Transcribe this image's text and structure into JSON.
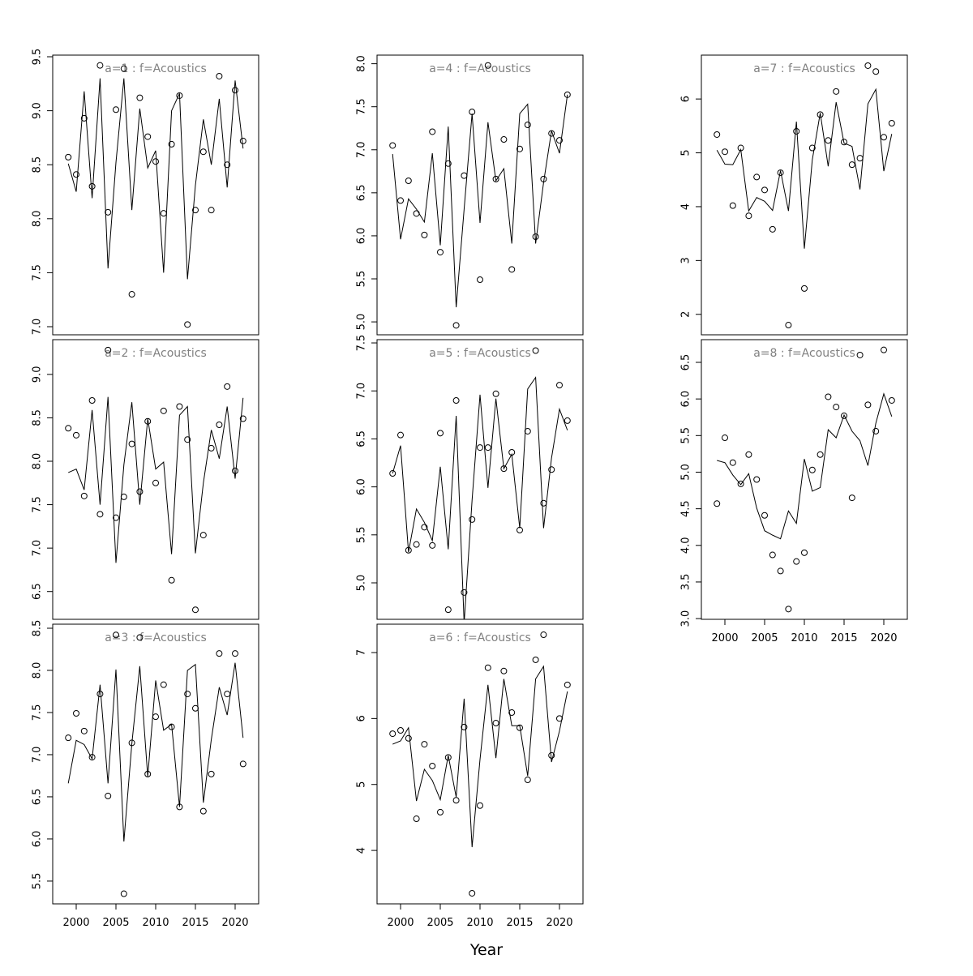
{
  "x_label": "Year",
  "chart_data": [
    {
      "type": "scatter",
      "title": "a=1  :  f=Acoustics",
      "x": [
        1999,
        2000,
        2001,
        2002,
        2003,
        2004,
        2005,
        2006,
        2007,
        2008,
        2009,
        2010,
        2011,
        2012,
        2013,
        2014,
        2015,
        2016,
        2017,
        2018,
        2019,
        2020,
        2021
      ],
      "values": [
        8.57,
        8.41,
        8.93,
        8.3,
        9.42,
        8.06,
        9.01,
        9.39,
        7.3,
        9.12,
        8.76,
        8.53,
        8.05,
        8.69,
        9.14,
        7.02,
        8.08,
        8.62,
        8.08,
        9.32,
        8.5,
        9.19,
        8.72
      ],
      "fitted": [
        8.51,
        8.25,
        9.18,
        8.19,
        9.3,
        7.54,
        8.52,
        9.3,
        8.08,
        9.02,
        8.47,
        8.63,
        7.5,
        9.0,
        9.16,
        7.44,
        8.31,
        8.92,
        8.5,
        9.11,
        8.29,
        9.28,
        8.65
      ],
      "xlim": [
        1997.04,
        2022.96
      ],
      "ylim": [
        6.925,
        9.515
      ],
      "yticks": [
        {
          "value": 7,
          "label": "7.0"
        },
        7.5,
        {
          "value": 8,
          "label": "8.0"
        },
        8.5,
        {
          "value": 9,
          "label": "9.0"
        },
        9.5
      ]
    },
    {
      "type": "scatter",
      "title": "a=2  :  f=Acoustics",
      "x": [
        1999,
        2000,
        2001,
        2002,
        2003,
        2004,
        2005,
        2006,
        2007,
        2008,
        2009,
        2010,
        2011,
        2012,
        2013,
        2014,
        2015,
        2016,
        2017,
        2018,
        2019,
        2020,
        2021
      ],
      "values": [
        8.38,
        8.3,
        7.6,
        8.7,
        7.39,
        9.28,
        7.35,
        7.59,
        8.2,
        7.65,
        8.46,
        7.75,
        8.58,
        6.63,
        8.63,
        8.25,
        6.29,
        7.15,
        8.15,
        8.42,
        8.86,
        7.89,
        8.49
      ],
      "fitted": [
        7.87,
        7.91,
        7.67,
        8.59,
        7.5,
        8.74,
        6.83,
        7.96,
        8.68,
        7.5,
        8.49,
        7.91,
        7.99,
        6.93,
        8.53,
        8.63,
        6.94,
        7.75,
        8.36,
        8.03,
        8.63,
        7.8,
        8.73
      ],
      "xlim": [
        1997.04,
        2022.96
      ],
      "ylim": [
        6.18,
        9.4
      ],
      "yticks": [
        6.5,
        {
          "value": 7,
          "label": "7.0"
        },
        7.5,
        {
          "value": 8,
          "label": "8.0"
        },
        8.5,
        {
          "value": 9,
          "label": "9.0"
        }
      ]
    },
    {
      "type": "scatter",
      "title": "a=3  :  f=Acoustics",
      "x": [
        1999,
        2000,
        2001,
        2002,
        2003,
        2004,
        2005,
        2006,
        2007,
        2008,
        2009,
        2010,
        2011,
        2012,
        2013,
        2014,
        2015,
        2016,
        2017,
        2018,
        2019,
        2020,
        2021
      ],
      "values": [
        7.2,
        7.49,
        7.28,
        6.97,
        7.72,
        6.51,
        8.42,
        5.35,
        7.14,
        8.39,
        6.77,
        7.45,
        7.83,
        7.33,
        6.38,
        7.72,
        7.55,
        6.33,
        6.77,
        8.2,
        7.72,
        8.2,
        6.89
      ],
      "fitted": [
        6.66,
        7.17,
        7.12,
        6.95,
        7.83,
        6.66,
        8.01,
        5.97,
        7.13,
        8.05,
        6.74,
        7.88,
        7.29,
        7.36,
        6.38,
        8.0,
        8.07,
        6.43,
        7.18,
        7.8,
        7.47,
        8.09,
        7.2
      ],
      "xlim": [
        1997.04,
        2022.96
      ],
      "ylim": [
        5.23,
        8.548
      ],
      "xticks": [
        2000,
        2005,
        2010,
        2015,
        2020
      ],
      "yticks": [
        5.5,
        {
          "value": 6,
          "label": "6.0"
        },
        6.5,
        {
          "value": 7,
          "label": "7.0"
        },
        7.5,
        {
          "value": 8,
          "label": "8.0"
        },
        8.5
      ]
    },
    {
      "type": "scatter",
      "title": "a=4  :  f=Acoustics",
      "x": [
        1999,
        2000,
        2001,
        2002,
        2003,
        2004,
        2005,
        2006,
        2007,
        2008,
        2009,
        2010,
        2011,
        2012,
        2013,
        2014,
        2015,
        2016,
        2017,
        2018,
        2019,
        2020,
        2021
      ],
      "values": [
        7.05,
        6.41,
        6.64,
        6.26,
        6.01,
        7.21,
        5.81,
        6.84,
        4.96,
        6.7,
        7.44,
        5.49,
        7.98,
        6.66,
        7.12,
        5.61,
        7.01,
        7.29,
        5.99,
        6.66,
        7.19,
        7.11,
        7.64
      ],
      "fitted": [
        6.95,
        5.96,
        6.43,
        6.31,
        6.16,
        6.96,
        5.89,
        7.27,
        5.17,
        6.31,
        7.42,
        6.15,
        7.32,
        6.64,
        6.78,
        5.91,
        7.42,
        7.53,
        5.91,
        6.62,
        7.22,
        6.96,
        7.64
      ],
      "xlim": [
        1997.04,
        2022.96
      ],
      "ylim": [
        4.85,
        8.1
      ],
      "yticks": [
        {
          "value": 5,
          "label": "5.0"
        },
        5.5,
        {
          "value": 6,
          "label": "6.0"
        },
        6.5,
        {
          "value": 7,
          "label": "7.0"
        },
        7.5,
        {
          "value": 8,
          "label": "8.0"
        }
      ]
    },
    {
      "type": "scatter",
      "title": "a=5  :  f=Acoustics",
      "x": [
        1999,
        2000,
        2001,
        2002,
        2003,
        2004,
        2005,
        2006,
        2007,
        2008,
        2009,
        2010,
        2011,
        2012,
        2013,
        2014,
        2015,
        2016,
        2017,
        2018,
        2019,
        2020,
        2021
      ],
      "values": [
        6.14,
        6.54,
        5.34,
        5.4,
        5.58,
        5.39,
        6.56,
        4.72,
        6.9,
        4.9,
        5.66,
        6.41,
        6.41,
        6.97,
        6.19,
        6.36,
        5.55,
        6.58,
        7.42,
        5.83,
        6.18,
        7.06,
        6.69
      ],
      "fitted": [
        6.14,
        6.43,
        5.32,
        5.77,
        5.63,
        5.44,
        6.21,
        5.35,
        6.74,
        4.58,
        5.86,
        6.96,
        5.99,
        6.92,
        6.19,
        6.34,
        5.57,
        7.02,
        7.14,
        5.57,
        6.3,
        6.81,
        6.59
      ],
      "xlim": [
        1997.04,
        2022.96
      ],
      "ylim": [
        4.62,
        7.534
      ],
      "yticks": [
        {
          "value": 5,
          "label": "5.0"
        },
        5.5,
        {
          "value": 6,
          "label": "6.0"
        },
        6.5,
        {
          "value": 7,
          "label": "7.0"
        },
        7.5
      ]
    },
    {
      "type": "scatter",
      "title": "a=6  :  f=Acoustics",
      "x": [
        1999,
        2000,
        2001,
        2002,
        2003,
        2004,
        2005,
        2006,
        2007,
        2008,
        2009,
        2010,
        2011,
        2012,
        2013,
        2014,
        2015,
        2016,
        2017,
        2018,
        2019,
        2020,
        2021
      ],
      "values": [
        5.77,
        5.82,
        5.7,
        4.48,
        5.61,
        5.28,
        4.58,
        5.41,
        4.76,
        5.87,
        3.35,
        4.68,
        6.77,
        5.93,
        6.72,
        6.09,
        5.86,
        5.07,
        6.89,
        7.27,
        5.44,
        6.0,
        6.51
      ],
      "fitted": [
        5.61,
        5.66,
        5.86,
        4.75,
        5.23,
        5.06,
        4.77,
        5.44,
        4.81,
        6.3,
        4.05,
        5.38,
        6.51,
        5.4,
        6.6,
        5.89,
        5.89,
        5.13,
        6.6,
        6.79,
        5.34,
        5.81,
        6.41
      ],
      "xlim": [
        1997.04,
        2022.96
      ],
      "ylim": [
        3.19,
        7.43
      ],
      "xticks": [
        2000,
        2005,
        2010,
        2015,
        2020
      ],
      "yticks": [
        4,
        5,
        6,
        7
      ]
    },
    {
      "type": "scatter",
      "title": "a=7  :  f=Acoustics",
      "x": [
        1999,
        2000,
        2001,
        2002,
        2003,
        2004,
        2005,
        2006,
        2007,
        2008,
        2009,
        2010,
        2011,
        2012,
        2013,
        2014,
        2015,
        2016,
        2017,
        2018,
        2019,
        2020,
        2021
      ],
      "values": [
        5.34,
        5.02,
        4.02,
        5.09,
        3.83,
        4.55,
        4.31,
        3.58,
        4.63,
        1.8,
        5.4,
        2.48,
        5.09,
        5.71,
        5.23,
        6.14,
        5.2,
        4.78,
        4.9,
        6.62,
        6.51,
        5.29,
        5.55
      ],
      "fitted": [
        5.05,
        4.79,
        4.78,
        5.06,
        3.92,
        4.17,
        4.1,
        3.93,
        4.67,
        3.92,
        5.58,
        3.22,
        4.87,
        5.74,
        4.75,
        5.94,
        5.18,
        5.12,
        4.32,
        5.91,
        6.18,
        4.66,
        5.35
      ],
      "xlim": [
        1997.04,
        2022.96
      ],
      "ylim": [
        1.62,
        6.815
      ],
      "yticks": [
        2,
        3,
        4,
        5,
        6
      ]
    },
    {
      "type": "scatter",
      "title": "a=8  :  f=Acoustics",
      "x": [
        1999,
        2000,
        2001,
        2002,
        2003,
        2004,
        2005,
        2006,
        2007,
        2008,
        2009,
        2010,
        2011,
        2012,
        2013,
        2014,
        2015,
        2016,
        2017,
        2018,
        2019,
        2020,
        2021
      ],
      "values": [
        4.57,
        5.47,
        5.13,
        4.84,
        5.24,
        4.9,
        4.41,
        3.87,
        3.65,
        3.13,
        3.78,
        3.9,
        5.03,
        5.24,
        6.03,
        5.89,
        5.77,
        4.65,
        6.6,
        5.92,
        5.56,
        6.67,
        5.98
      ],
      "fitted": [
        5.16,
        5.13,
        4.96,
        4.83,
        4.98,
        4.51,
        4.2,
        4.14,
        4.09,
        4.47,
        4.3,
        5.18,
        4.74,
        4.79,
        5.58,
        5.47,
        5.78,
        5.56,
        5.43,
        5.09,
        5.67,
        6.07,
        5.76
      ],
      "xlim": [
        1997.04,
        2022.96
      ],
      "ylim": [
        2.99,
        6.81
      ],
      "xticks": [
        2000,
        2005,
        2010,
        2015,
        2020
      ],
      "yticks": [
        {
          "value": 3,
          "label": "3.0"
        },
        3.5,
        {
          "value": 4,
          "label": "4.0"
        },
        4.5,
        {
          "value": 5,
          "label": "5.0"
        },
        5.5,
        {
          "value": 6,
          "label": "6.0"
        },
        6.5
      ]
    }
  ]
}
